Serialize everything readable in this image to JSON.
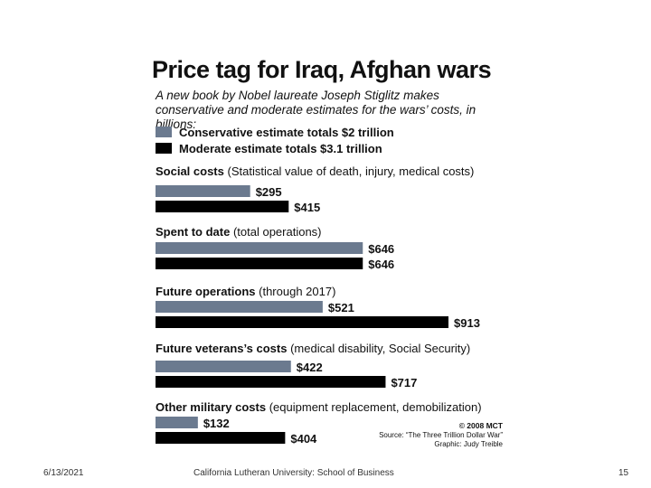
{
  "chart_data": {
    "type": "bar",
    "title": "Price tag for Iraq, Afghan wars",
    "subtitle": "A new book by Nobel laureate Joseph Stiglitz makes conservative and moderate estimates for the wars’ costs, in billions:",
    "colors": {
      "conservative": "#6b7a8f",
      "moderate": "#000000"
    },
    "series": [
      {
        "name": "Conservative estimate totals $2 trillion",
        "values": [
          295,
          646,
          521,
          422,
          132
        ]
      },
      {
        "name": "Moderate estimate totals $3.1 trillion",
        "values": [
          415,
          646,
          913,
          717,
          404
        ]
      }
    ],
    "categories": [
      {
        "bold": "Social costs",
        "rest": " (Statistical value of death, injury, medical costs)"
      },
      {
        "bold": "Spent to date",
        "rest": " (total operations)"
      },
      {
        "bold": "Future operations",
        "rest": " (through 2017)"
      },
      {
        "bold": "Future veterans’s costs",
        "rest": " (medical disability, Social Security)"
      },
      {
        "bold": "Other military costs",
        "rest": " (equipment replacement, demobilization)"
      }
    ],
    "value_labels": [
      [
        "$295",
        "$646",
        "$521",
        "$422",
        "$132"
      ],
      [
        "$415",
        "$646",
        "$913",
        "$717",
        "$404"
      ]
    ],
    "value_max": 913,
    "ylabel": "",
    "xlabel": ""
  },
  "credit": {
    "copyright": "© 2008 MCT",
    "source": "Source: “The Three Trillion Dollar War”",
    "graphic": "Graphic: Judy Treible"
  },
  "footer": {
    "date": "6/13/2021",
    "org": "California Lutheran University: School of Business",
    "page": "15"
  }
}
